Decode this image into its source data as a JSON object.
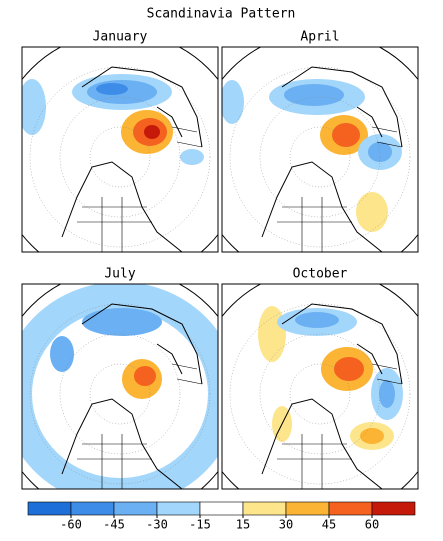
{
  "title": "Scandinavia Pattern",
  "panels": [
    {
      "title": "January"
    },
    {
      "title": "April"
    },
    {
      "title": "July"
    },
    {
      "title": "October"
    }
  ],
  "colorbar": {
    "ticks": [
      -60,
      -45,
      -30,
      -15,
      15,
      30,
      45,
      60
    ],
    "colors": [
      "#1f6fd8",
      "#3d8de8",
      "#6bb0f2",
      "#a3d6fb",
      "#ffffff",
      "#fde58c",
      "#fbb434",
      "#f5611e",
      "#c51a0a"
    ]
  }
}
